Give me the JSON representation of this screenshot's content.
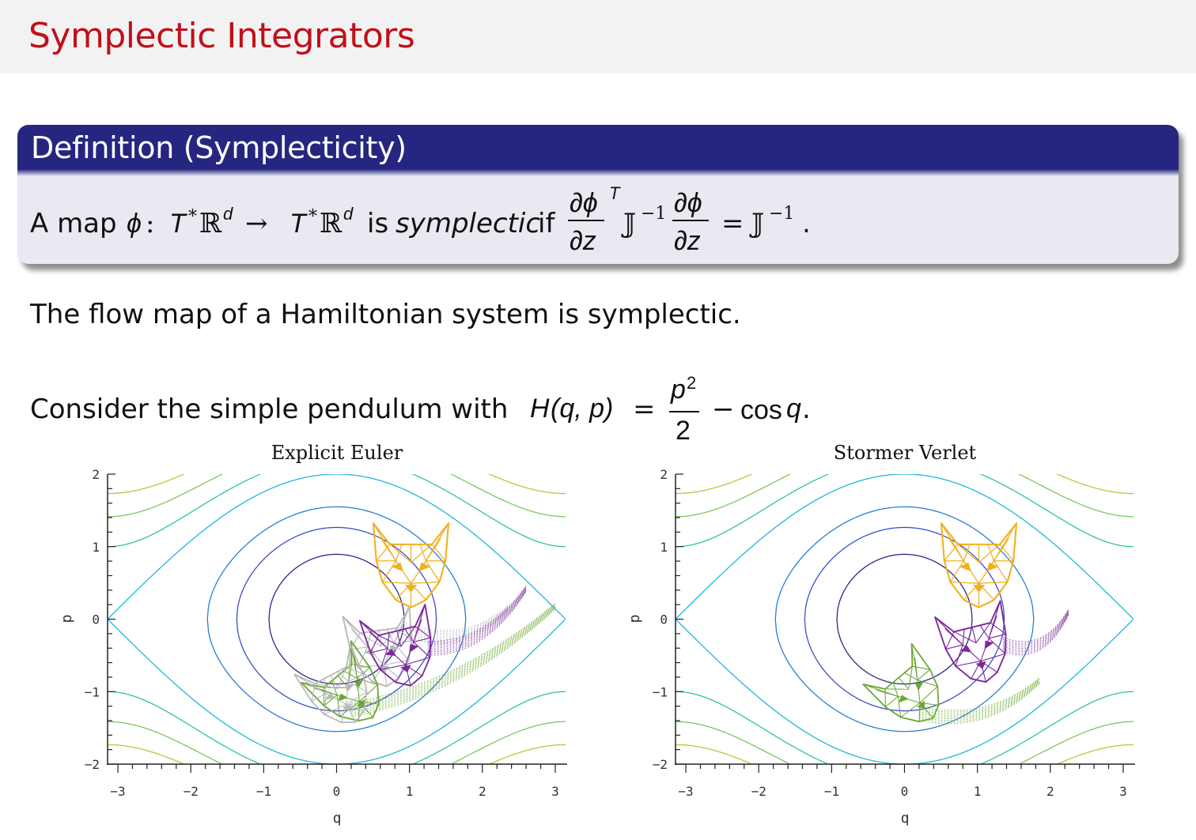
{
  "slide": {
    "title": "Symplectic Integrators"
  },
  "definition": {
    "title": "Definition (Symplecticity)",
    "text_prefix": "A map",
    "phi": "ϕ",
    "colon": ":",
    "domain": "T",
    "star": "*",
    "R": "ℝ",
    "d": "d",
    "arrow": "→",
    "text_is": "is",
    "text_symplectic": "symplectic",
    "text_if": "if",
    "partial_phi": "∂ϕ",
    "partial_z": "∂z",
    "transpose": "T",
    "J": "𝕁",
    "inv": "−1",
    "equals": "=",
    "period": "."
  },
  "paragraph1": "The flow map of a Hamiltonian system is symplectic.",
  "paragraph2": {
    "text": "Consider the simple pendulum with",
    "H": "H",
    "args": "(q, p)",
    "equals": "=",
    "numer": "p",
    "power": "2",
    "denom": "2",
    "minus": "−",
    "cos": "cos",
    "q": "q",
    "period": "."
  },
  "chart_data": [
    {
      "type": "contour",
      "title": "Explicit Euler",
      "xlabel": "q",
      "ylabel": "p",
      "xlim": [
        -3.14159,
        3.14159
      ],
      "ylim": [
        -2,
        2
      ],
      "xticks": [
        -3,
        -2,
        -1,
        0,
        1,
        2,
        3
      ],
      "yticks": [
        -2,
        -1,
        0,
        1,
        2
      ],
      "contour_levels": [
        -0.6,
        -0.2,
        0.2,
        1.0,
        1.5,
        2.0,
        2.5
      ],
      "contour_colors": [
        "#2a2a8c",
        "#3a4fc8",
        "#2a7fd4",
        "#1fb8d8",
        "#2ec4a4",
        "#7cc85a",
        "#b8c83a",
        "#f0b020"
      ],
      "overlays": [
        "gray-cat",
        "orange-cat",
        "purple-cat",
        "green-cat"
      ]
    },
    {
      "type": "contour",
      "title": "Stormer Verlet",
      "xlabel": "q",
      "ylabel": "p",
      "xlim": [
        -3.14159,
        3.14159
      ],
      "ylim": [
        -2,
        2
      ],
      "xticks": [
        -3,
        -2,
        -1,
        0,
        1,
        2,
        3
      ],
      "yticks": [
        -2,
        -1,
        0,
        1,
        2
      ],
      "contour_levels": [
        -0.6,
        -0.2,
        0.2,
        1.0,
        1.5,
        2.0,
        2.5
      ],
      "contour_colors": [
        "#2a2a8c",
        "#3a4fc8",
        "#2a7fd4",
        "#1fb8d8",
        "#2ec4a4",
        "#7cc85a",
        "#b8c83a",
        "#f0b020"
      ],
      "overlays": [
        "orange-cat",
        "purple-cat",
        "green-cat"
      ]
    }
  ],
  "colors": {
    "title_red": "#c0101a",
    "block_blue": "#262680",
    "block_body": "#e9e9f2",
    "cat_orange": "#f0b020",
    "cat_purple": "#7a2a9a",
    "cat_green": "#6aa830",
    "cat_gray": "#b8b8b8"
  }
}
